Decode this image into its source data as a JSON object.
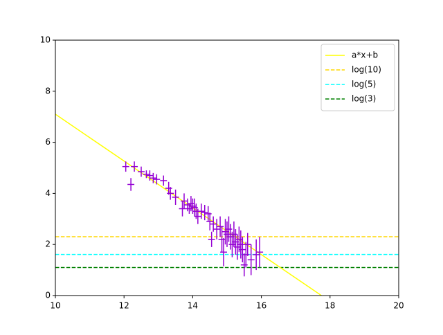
{
  "chart_data": {
    "type": "errorbar",
    "xlim": [
      10,
      20
    ],
    "ylim": [
      0,
      10
    ],
    "xticks": [
      10,
      12,
      14,
      16,
      18,
      20
    ],
    "yticks": [
      0,
      2,
      4,
      6,
      8,
      10
    ],
    "grid": false,
    "legend": "upper right",
    "fit": {
      "name": "a*x+b",
      "color": "#ffff00",
      "x": [
        10,
        17.75
      ],
      "values": [
        7.1,
        0
      ]
    },
    "hlines": [
      {
        "name": "log(10)",
        "color": "#ffd700",
        "value": 2.3026
      },
      {
        "name": "log(5)",
        "color": "#00ffff",
        "value": 1.6094
      },
      {
        "name": "log(3)",
        "color": "#008000",
        "value": 1.0986
      }
    ],
    "points": {
      "color": "#9400d3",
      "xerr": 0.1,
      "x": [
        12.05,
        12.2,
        12.3,
        12.5,
        12.65,
        12.75,
        12.85,
        12.95,
        13.15,
        13.3,
        13.35,
        13.5,
        13.7,
        13.75,
        13.85,
        13.9,
        13.95,
        14.0,
        14.05,
        14.1,
        14.15,
        14.25,
        14.35,
        14.45,
        14.5,
        14.55,
        14.6,
        14.7,
        14.8,
        14.85,
        14.9,
        14.95,
        15.0,
        15.05,
        15.1,
        15.15,
        15.2,
        15.25,
        15.3,
        15.35,
        15.4,
        15.45,
        15.5,
        15.55,
        15.6,
        15.7,
        15.85,
        15.95
      ],
      "values": [
        5.05,
        4.35,
        5.05,
        4.85,
        4.75,
        4.7,
        4.6,
        4.55,
        4.5,
        4.2,
        4.0,
        3.85,
        3.4,
        3.7,
        3.55,
        3.4,
        3.6,
        3.5,
        3.45,
        3.3,
        3.1,
        3.3,
        3.25,
        3.2,
        2.9,
        2.2,
        2.8,
        2.6,
        2.7,
        2.2,
        1.7,
        2.5,
        2.4,
        2.6,
        2.3,
        2.0,
        2.4,
        2.1,
        1.9,
        2.2,
        2.0,
        1.8,
        1.2,
        1.6,
        2.0,
        1.4,
        1.6,
        1.7
      ],
      "errors": [
        0.2,
        0.25,
        0.2,
        0.2,
        0.15,
        0.2,
        0.2,
        0.2,
        0.2,
        0.25,
        0.25,
        0.3,
        0.3,
        0.3,
        0.25,
        0.2,
        0.3,
        0.3,
        0.35,
        0.3,
        0.3,
        0.3,
        0.3,
        0.3,
        0.35,
        0.3,
        0.3,
        0.4,
        0.4,
        0.5,
        0.55,
        0.5,
        0.5,
        0.5,
        0.5,
        0.5,
        0.5,
        0.5,
        0.5,
        0.5,
        0.55,
        0.5,
        0.45,
        0.5,
        0.45,
        0.6,
        0.6,
        0.6
      ]
    }
  }
}
